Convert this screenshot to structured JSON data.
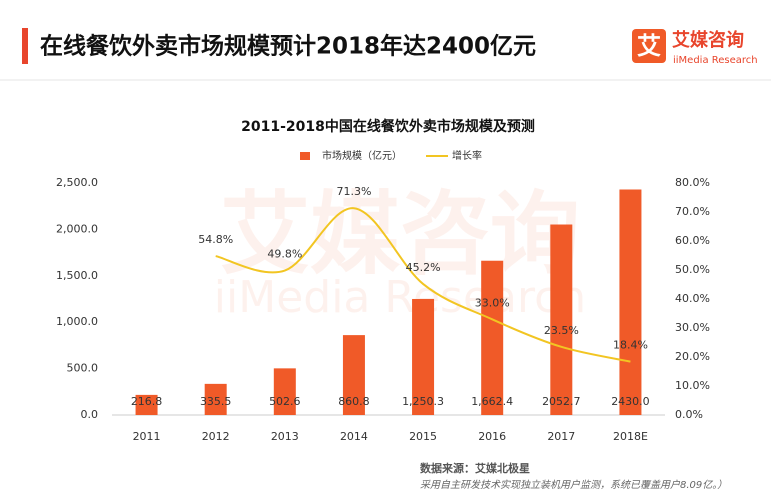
{
  "header": {
    "title": "在线餐饮外卖市场规模预计2018年达2400亿元",
    "logo": "艾",
    "brand": "艾媒咨询",
    "brand_en": "iiMedia Research"
  },
  "watermark": {
    "text": "艾媒咨询",
    "text_en": "iiMedia Research"
  },
  "chart_data": {
    "type": "bar_line",
    "title": "2011-2018中国在线餐饮外卖市场规模及预测",
    "categories": [
      "2011",
      "2012",
      "2013",
      "2014",
      "2015",
      "2016",
      "2017",
      "2018E"
    ],
    "series": [
      {
        "name": "市场规模（亿元）",
        "color": "#f05a28",
        "type": "bar",
        "values": [
          216.8,
          335.5,
          502.6,
          860.8,
          1250.3,
          1662.4,
          2052.7,
          2430.0
        ],
        "value_labels": [
          "216.8",
          "335.5",
          "502.6",
          "860.8",
          "1,250.3",
          "1,662.4",
          "2052.7",
          "2430.0"
        ]
      },
      {
        "name": "增长率",
        "color": "#f2c522",
        "type": "line",
        "axis": "y2",
        "values": [
          null,
          54.8,
          49.8,
          71.3,
          45.2,
          33.0,
          23.5,
          18.4
        ],
        "value_labels": [
          null,
          "54.8%",
          "49.8%",
          "71.3%",
          "45.2%",
          "33.0%",
          "23.5%",
          "18.4%"
        ]
      }
    ],
    "ylim": [
      0,
      2500
    ],
    "yticks": [
      {
        "value": 0,
        "label": "0.0"
      },
      {
        "value": 500,
        "label": "500.0"
      },
      {
        "value": 1000,
        "label": "1,000.0"
      },
      {
        "value": 1500,
        "label": "1,500.0"
      },
      {
        "value": 2000,
        "label": "2,000.0"
      },
      {
        "value": 2500,
        "label": "2,500.0"
      }
    ],
    "y2lim": [
      0,
      80
    ],
    "y2ticks": [
      {
        "value": 0,
        "label": "0.0%"
      },
      {
        "value": 10,
        "label": "10.0%"
      },
      {
        "value": 20,
        "label": "20.0%"
      },
      {
        "value": 30,
        "label": "30.0%"
      },
      {
        "value": 40,
        "label": "40.0%"
      },
      {
        "value": 50,
        "label": "50.0%"
      },
      {
        "value": 60,
        "label": "60.0%"
      },
      {
        "value": 70,
        "label": "70.0%"
      },
      {
        "value": 80,
        "label": "80.0%"
      }
    ],
    "legend": "top"
  },
  "source": {
    "label": "数据来源：艾媒北极星",
    "note": "采用自主研发技术实现独立装机用户监测，系统已覆盖用户8.09亿。）"
  }
}
